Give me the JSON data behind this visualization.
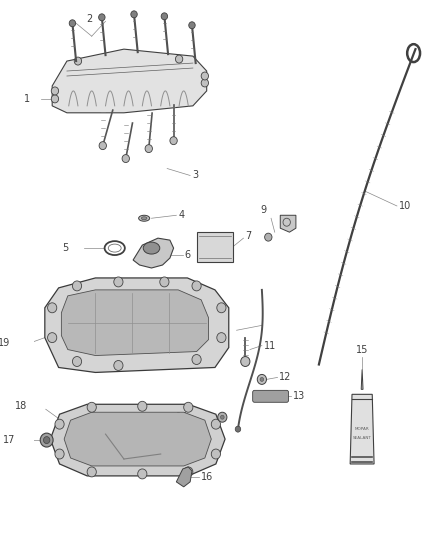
{
  "bg_color": "#ffffff",
  "fig_width": 4.38,
  "fig_height": 5.33,
  "dpi": 100,
  "line_color": "#404040",
  "label_color": "#333333",
  "label_fontsize": 7.0,
  "callout_lw": 0.5,
  "callout_color": "#888888"
}
